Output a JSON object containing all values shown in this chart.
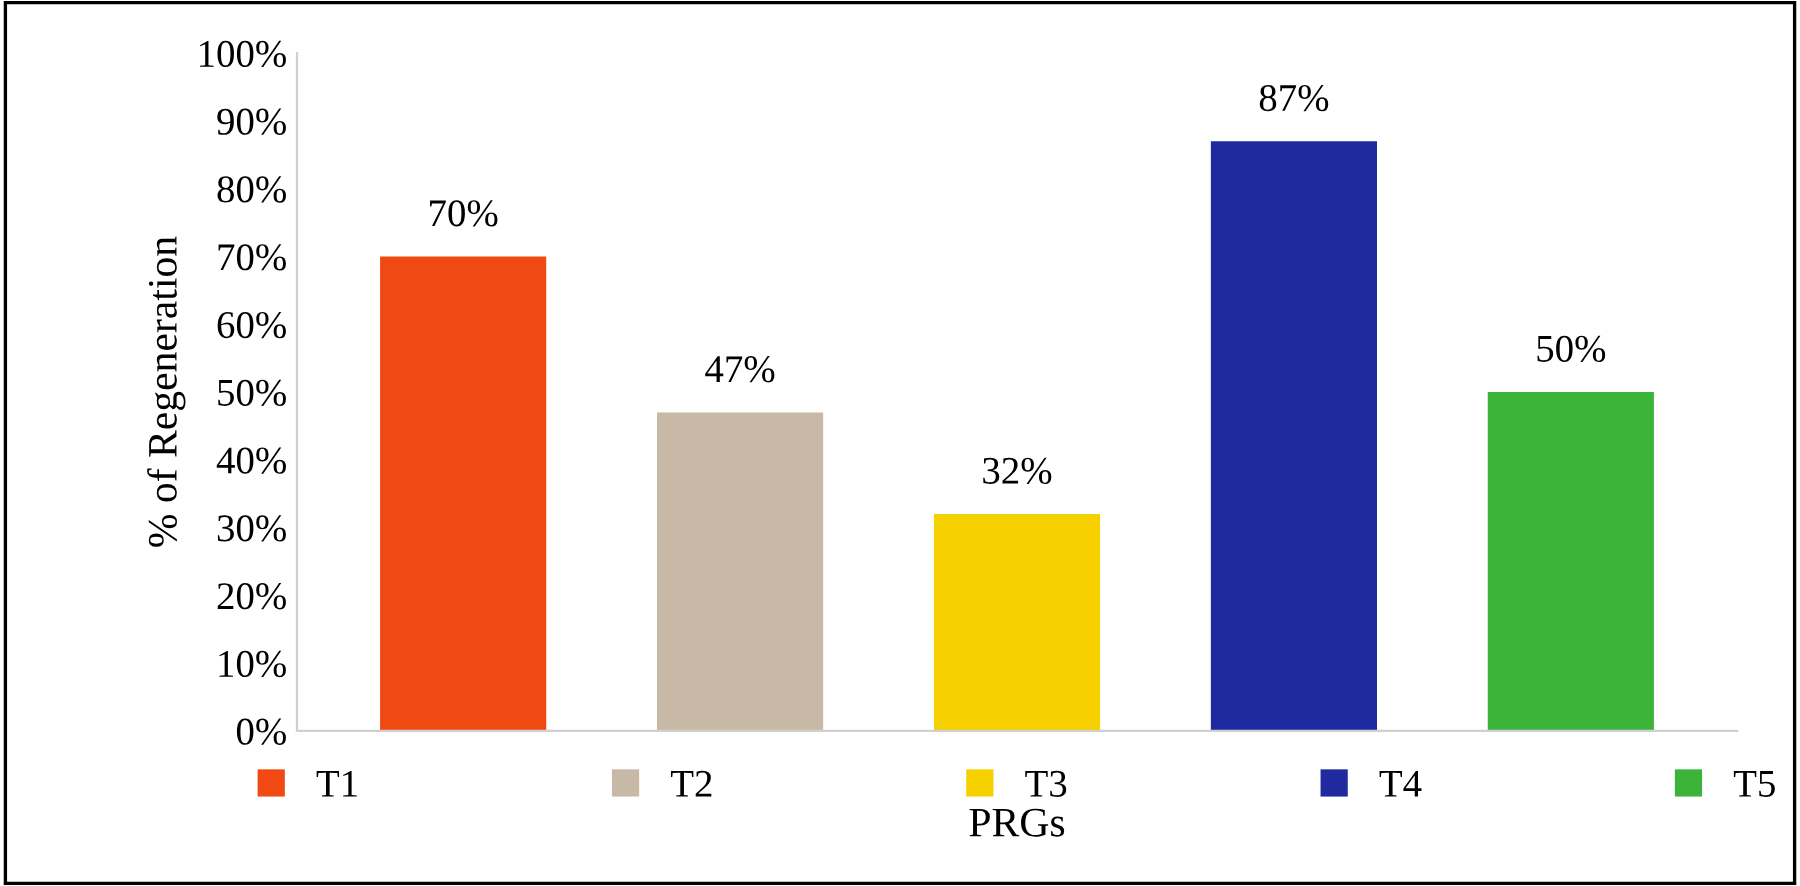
{
  "chart_data": {
    "type": "bar",
    "xlabel": "PRGs",
    "ylabel": "% of Regeneration",
    "categories": [
      null,
      null,
      null,
      null,
      null
    ],
    "series": [
      {
        "name": "T1",
        "color": "#f04a12",
        "values": [
          70,
          null,
          null,
          null,
          null
        ],
        "value_labels": [
          "70%",
          null,
          null,
          null,
          null
        ]
      },
      {
        "name": "T2",
        "color": "#c8b8a6",
        "values": [
          null,
          47,
          null,
          null,
          null
        ],
        "value_labels": [
          null,
          "47%",
          null,
          null,
          null
        ]
      },
      {
        "name": "T3",
        "color": "#f7d000",
        "values": [
          null,
          null,
          32,
          null,
          null
        ],
        "value_labels": [
          null,
          null,
          "32%",
          null,
          null
        ]
      },
      {
        "name": "T4",
        "color": "#1e2a9e",
        "values": [
          null,
          null,
          null,
          87,
          null
        ],
        "value_labels": [
          null,
          null,
          null,
          "87%",
          null
        ]
      },
      {
        "name": "T5",
        "color": "#3cb43a",
        "values": [
          null,
          null,
          null,
          null,
          50
        ],
        "value_labels": [
          null,
          null,
          null,
          null,
          "50%"
        ]
      }
    ],
    "ylim": [
      0,
      100
    ],
    "yticks": [
      {
        "value": 0,
        "label": "0%"
      },
      {
        "value": 10,
        "label": "10%"
      },
      {
        "value": 20,
        "label": "20%"
      },
      {
        "value": 30,
        "label": "30%"
      },
      {
        "value": 40,
        "label": "40%"
      },
      {
        "value": 50,
        "label": "50%"
      },
      {
        "value": 60,
        "label": "60%"
      },
      {
        "value": 70,
        "label": "70%"
      },
      {
        "value": 80,
        "label": "80%"
      },
      {
        "value": 90,
        "label": "90%"
      },
      {
        "value": 100,
        "label": "100%"
      }
    ],
    "grid": false,
    "legend": "bottom"
  }
}
